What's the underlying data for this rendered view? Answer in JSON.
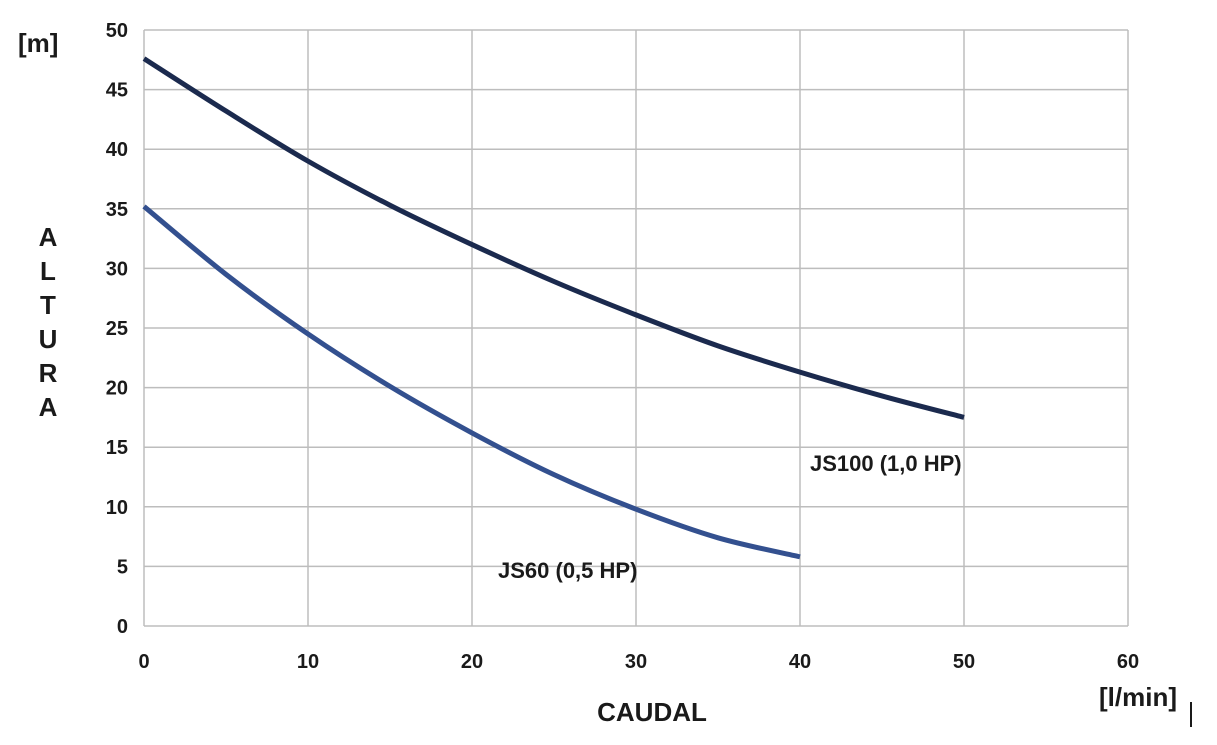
{
  "chart_data": {
    "type": "line",
    "xlabel": "CAUDAL",
    "ylabel": "ALTURA",
    "x_unit": "[l/min]",
    "y_unit": "[m]",
    "xlim": [
      0,
      60
    ],
    "ylim": [
      0,
      50
    ],
    "x_ticks": [
      0,
      10,
      20,
      30,
      40,
      50,
      60
    ],
    "y_ticks": [
      0,
      5,
      10,
      15,
      20,
      25,
      30,
      35,
      40,
      45,
      50
    ],
    "grid": true,
    "series": [
      {
        "name": "JS100 (1,0 HP)",
        "color": "#1b2a4e",
        "x": [
          0,
          5,
          10,
          15,
          20,
          25,
          30,
          35,
          40,
          45,
          50
        ],
        "y": [
          47.6,
          43.2,
          39.0,
          35.3,
          32.0,
          28.9,
          26.1,
          23.5,
          21.3,
          19.3,
          17.5
        ]
      },
      {
        "name": "JS60 (0,5 HP)",
        "color": "#33508f",
        "x": [
          0,
          5,
          10,
          15,
          20,
          25,
          30,
          35,
          40
        ],
        "y": [
          35.2,
          29.5,
          24.5,
          20.1,
          16.2,
          12.7,
          9.8,
          7.4,
          5.8
        ]
      }
    ]
  }
}
